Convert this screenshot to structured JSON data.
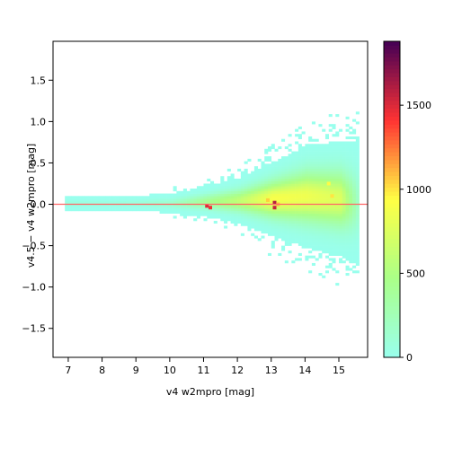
{
  "chart_data": {
    "type": "heatmap",
    "title": "",
    "xlabel": "v4 w2mpro [mag]",
    "ylabel": "v4.5 − v4 w2mpro [mag]",
    "xlim": [
      6.55,
      15.85
    ],
    "ylim": [
      -1.85,
      1.97
    ],
    "x_ticks": [
      7,
      8,
      9,
      10,
      11,
      12,
      13,
      14,
      15
    ],
    "y_ticks": [
      -1.5,
      -1.0,
      -0.5,
      0.0,
      0.5,
      1.0,
      1.5
    ],
    "x_tick_labels": [
      "7",
      "8",
      "9",
      "10",
      "11",
      "12",
      "13",
      "14",
      "15"
    ],
    "y_tick_labels": [
      "−1.5",
      "−1.0",
      "−0.5",
      "0.0",
      "0.5",
      "1.0",
      "1.5"
    ],
    "reference_line": {
      "y": 0.0,
      "color": "#ff6666"
    },
    "density_profile": [
      {
        "x": 7.0,
        "center": 0.0,
        "halfwidth": 0.08,
        "peak": 60
      },
      {
        "x": 8.0,
        "center": 0.0,
        "halfwidth": 0.08,
        "peak": 60
      },
      {
        "x": 9.0,
        "center": 0.0,
        "halfwidth": 0.09,
        "peak": 80
      },
      {
        "x": 10.0,
        "center": 0.0,
        "halfwidth": 0.12,
        "peak": 150
      },
      {
        "x": 11.0,
        "center": 0.02,
        "halfwidth": 0.18,
        "peak": 400
      },
      {
        "x": 12.0,
        "center": 0.03,
        "halfwidth": 0.28,
        "peak": 600
      },
      {
        "x": 13.0,
        "center": 0.05,
        "halfwidth": 0.45,
        "peak": 900
      },
      {
        "x": 14.0,
        "center": 0.08,
        "halfwidth": 0.62,
        "peak": 850
      },
      {
        "x": 15.0,
        "center": 0.05,
        "halfwidth": 0.7,
        "peak": 750
      },
      {
        "x": 15.5,
        "center": 0.0,
        "halfwidth": 0.75,
        "peak": 200
      }
    ],
    "hotspots": [
      {
        "x": 11.1,
        "y": -0.02,
        "value": 1500
      },
      {
        "x": 11.2,
        "y": -0.04,
        "value": 1450
      },
      {
        "x": 13.1,
        "y": 0.02,
        "value": 1600
      },
      {
        "x": 13.1,
        "y": -0.04,
        "value": 1550
      },
      {
        "x": 13.2,
        "y": 0.0,
        "value": 1100
      },
      {
        "x": 12.9,
        "y": 0.05,
        "value": 1050
      },
      {
        "x": 14.7,
        "y": 0.25,
        "value": 950
      },
      {
        "x": 14.8,
        "y": 0.1,
        "value": 1000
      }
    ],
    "colorbar": {
      "min": 0,
      "max": 1880,
      "ticks": [
        0,
        500,
        1000,
        1500
      ],
      "tick_labels": [
        "0",
        "500",
        "1000",
        "1500"
      ],
      "colors": [
        "#99ffee",
        "#aaff88",
        "#ffff44",
        "#ff3333",
        "#440055"
      ]
    }
  }
}
